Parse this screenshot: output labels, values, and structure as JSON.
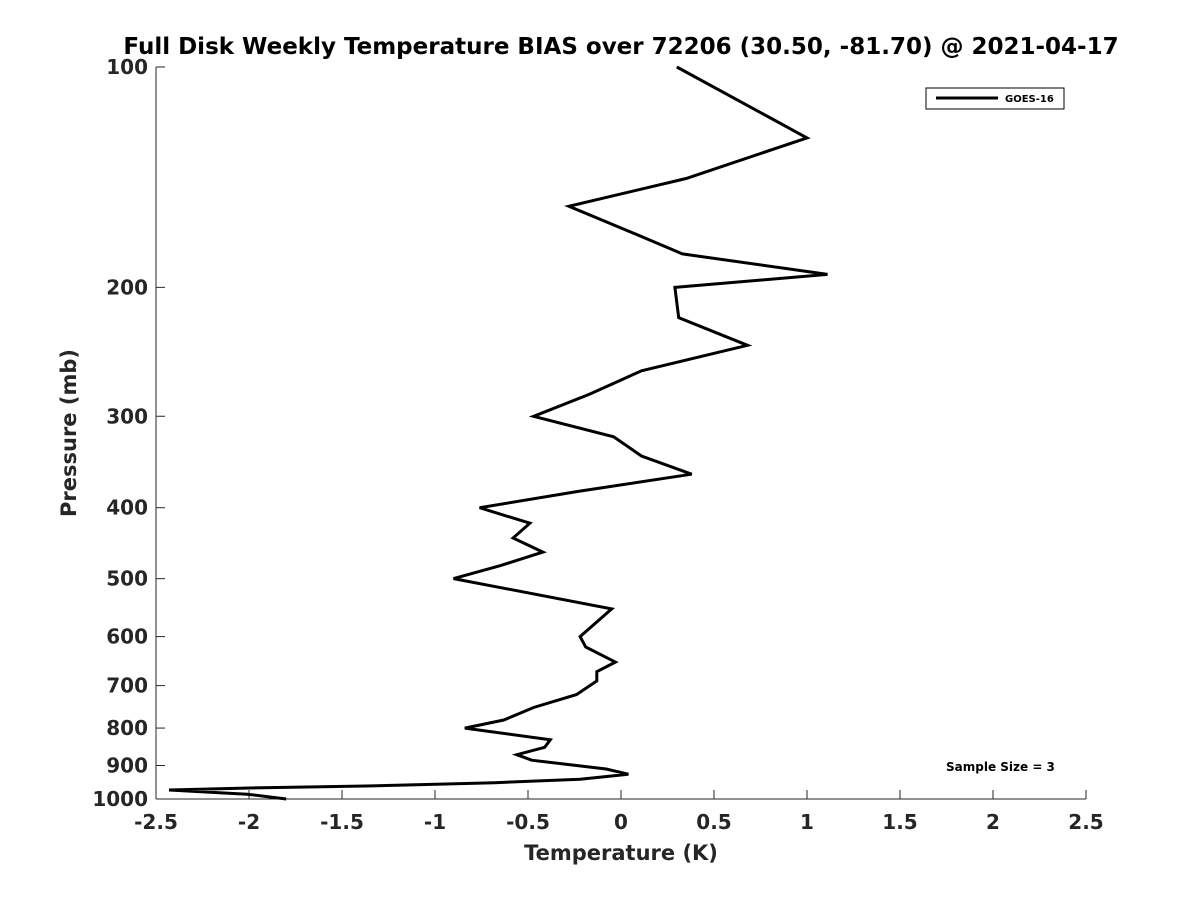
{
  "chart_data": {
    "type": "line",
    "title": "Full Disk Weekly Temperature BIAS over 72206 (30.50, -81.70) @ 2021-04-17",
    "xlabel": "Temperature (K)",
    "ylabel": "Pressure (mb)",
    "xlim": [
      -2.5,
      2.5
    ],
    "ylim": [
      1000,
      100
    ],
    "y_scale": "log",
    "y_reversed": true,
    "x_ticks": [
      "-2.5",
      "-2",
      "-1.5",
      "-1",
      "-0.5",
      "0",
      "0.5",
      "1",
      "1.5",
      "2",
      "2.5"
    ],
    "y_ticks": [
      "100",
      "200",
      "300",
      "400",
      "500",
      "600",
      "700",
      "800",
      "900",
      "1000"
    ],
    "grid": false,
    "legend_position": "top-right",
    "series": [
      {
        "name": "GOES-16",
        "color": "#000000",
        "points": [
          {
            "p": 100,
            "t": 0.3
          },
          {
            "p": 125,
            "t": 1.0
          },
          {
            "p": 142,
            "t": 0.35
          },
          {
            "p": 155,
            "t": -0.28
          },
          {
            "p": 170,
            "t": 0.1
          },
          {
            "p": 180,
            "t": 0.33
          },
          {
            "p": 192,
            "t": 1.11
          },
          {
            "p": 200,
            "t": 0.29
          },
          {
            "p": 220,
            "t": 0.31
          },
          {
            "p": 240,
            "t": 0.68
          },
          {
            "p": 260,
            "t": 0.11
          },
          {
            "p": 280,
            "t": -0.17
          },
          {
            "p": 300,
            "t": -0.47
          },
          {
            "p": 320,
            "t": -0.04
          },
          {
            "p": 340,
            "t": 0.11
          },
          {
            "p": 360,
            "t": 0.38
          },
          {
            "p": 380,
            "t": -0.23
          },
          {
            "p": 400,
            "t": -0.76
          },
          {
            "p": 420,
            "t": -0.49
          },
          {
            "p": 440,
            "t": -0.58
          },
          {
            "p": 460,
            "t": -0.42
          },
          {
            "p": 480,
            "t": -0.65
          },
          {
            "p": 500,
            "t": -0.9
          },
          {
            "p": 550,
            "t": -0.05
          },
          {
            "p": 600,
            "t": -0.22
          },
          {
            "p": 620,
            "t": -0.19
          },
          {
            "p": 650,
            "t": -0.03
          },
          {
            "p": 670,
            "t": -0.13
          },
          {
            "p": 690,
            "t": -0.13
          },
          {
            "p": 720,
            "t": -0.24
          },
          {
            "p": 750,
            "t": -0.47
          },
          {
            "p": 780,
            "t": -0.63
          },
          {
            "p": 800,
            "t": -0.84
          },
          {
            "p": 830,
            "t": -0.38
          },
          {
            "p": 850,
            "t": -0.41
          },
          {
            "p": 870,
            "t": -0.56
          },
          {
            "p": 885,
            "t": -0.48
          },
          {
            "p": 910,
            "t": -0.08
          },
          {
            "p": 925,
            "t": 0.04
          },
          {
            "p": 940,
            "t": -0.22
          },
          {
            "p": 950,
            "t": -0.68
          },
          {
            "p": 955,
            "t": -1.02
          },
          {
            "p": 960,
            "t": -1.37
          },
          {
            "p": 965,
            "t": -1.93
          },
          {
            "p": 972,
            "t": -2.43
          },
          {
            "p": 985,
            "t": -2.01
          },
          {
            "p": 1000,
            "t": -1.8
          }
        ]
      }
    ],
    "annotation": "Sample Size = 3"
  }
}
